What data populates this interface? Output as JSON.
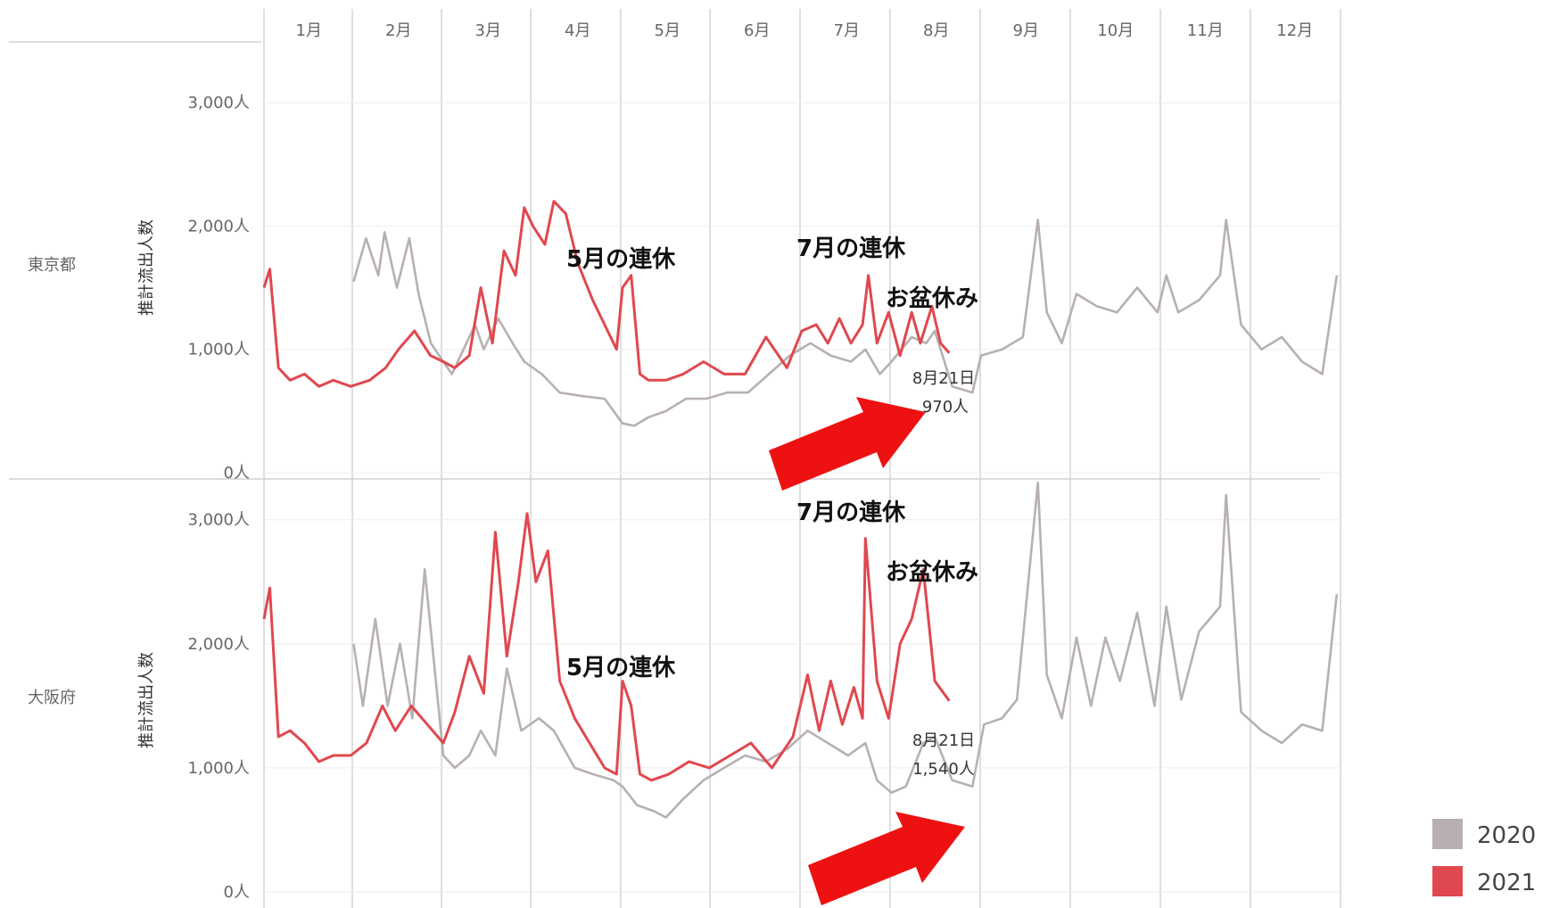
{
  "chart_data": {
    "type": "line",
    "title": "",
    "months": [
      "1月",
      "2月",
      "3月",
      "4月",
      "5月",
      "6月",
      "7月",
      "8月",
      "9月",
      "10月",
      "11月",
      "12月"
    ],
    "ylabel": "推計流出人数",
    "y_ticks": [
      "0人",
      "1,000人",
      "2,000人",
      "3,000人"
    ],
    "ylim": [
      0,
      3000
    ],
    "grid": true,
    "legend": {
      "position": "bottom-right",
      "items": [
        {
          "label": "2020",
          "color": "#b8b0b0"
        },
        {
          "label": "2021",
          "color": "#e0484f"
        }
      ]
    },
    "panels": [
      {
        "region": "東京都",
        "series": [
          {
            "name": "2020",
            "color": "#b8b0b0",
            "x": [
              "2020-02-01",
              "2020-02-05",
              "2020-02-09",
              "2020-02-11",
              "2020-02-15",
              "2020-02-19",
              "2020-02-22",
              "2020-02-26",
              "2020-03-01",
              "2020-03-04",
              "2020-03-08",
              "2020-03-12",
              "2020-03-15",
              "2020-03-20",
              "2020-03-25",
              "2020-03-29",
              "2020-04-04",
              "2020-04-10",
              "2020-04-18",
              "2020-04-25",
              "2020-05-01",
              "2020-05-05",
              "2020-05-10",
              "2020-05-16",
              "2020-05-23",
              "2020-05-30",
              "2020-06-06",
              "2020-06-13",
              "2020-06-20",
              "2020-06-27",
              "2020-07-04",
              "2020-07-11",
              "2020-07-18",
              "2020-07-23",
              "2020-07-28",
              "2020-08-01",
              "2020-08-08",
              "2020-08-13",
              "2020-08-16",
              "2020-08-22",
              "2020-08-29",
              "2020-09-01",
              "2020-09-08",
              "2020-09-15",
              "2020-09-20",
              "2020-09-23",
              "2020-09-28",
              "2020-10-03",
              "2020-10-10",
              "2020-10-17",
              "2020-10-24",
              "2020-10-31",
              "2020-11-03",
              "2020-11-07",
              "2020-11-14",
              "2020-11-21",
              "2020-11-23",
              "2020-11-28",
              "2020-12-05",
              "2020-12-12",
              "2020-12-19",
              "2020-12-26",
              "2020-12-31"
            ],
            "values": [
              1550,
              1900,
              1600,
              1950,
              1500,
              1900,
              1450,
              1050,
              900,
              800,
              1000,
              1200,
              1000,
              1250,
              1050,
              900,
              800,
              650,
              620,
              600,
              400,
              380,
              450,
              500,
              600,
              600,
              650,
              650,
              800,
              950,
              1050,
              950,
              900,
              1000,
              800,
              900,
              1100,
              1050,
              1150,
              700,
              650,
              950,
              1000,
              1100,
              2050,
              1300,
              1050,
              1450,
              1350,
              1300,
              1500,
              1300,
              1600,
              1300,
              1400,
              1600,
              2050,
              1200,
              1000,
              1100,
              900,
              800,
              1600
            ]
          },
          {
            "name": "2021",
            "color": "#e0484f",
            "x": [
              "2021-01-01",
              "2021-01-03",
              "2021-01-06",
              "2021-01-10",
              "2021-01-15",
              "2021-01-20",
              "2021-01-25",
              "2021-01-31",
              "2021-02-06",
              "2021-02-11",
              "2021-02-15",
              "2021-02-20",
              "2021-02-25",
              "2021-03-01",
              "2021-03-05",
              "2021-03-10",
              "2021-03-14",
              "2021-03-18",
              "2021-03-22",
              "2021-03-26",
              "2021-03-29",
              "2021-04-01",
              "2021-04-05",
              "2021-04-08",
              "2021-04-12",
              "2021-04-16",
              "2021-04-21",
              "2021-04-25",
              "2021-04-29",
              "2021-05-01",
              "2021-05-04",
              "2021-05-07",
              "2021-05-10",
              "2021-05-16",
              "2021-05-22",
              "2021-05-29",
              "2021-06-05",
              "2021-06-12",
              "2021-06-19",
              "2021-06-26",
              "2021-07-01",
              "2021-07-06",
              "2021-07-10",
              "2021-07-14",
              "2021-07-18",
              "2021-07-22",
              "2021-07-24",
              "2021-07-27",
              "2021-07-31",
              "2021-08-04",
              "2021-08-08",
              "2021-08-11",
              "2021-08-15",
              "2021-08-18",
              "2021-08-21"
            ],
            "values": [
              1500,
              1650,
              850,
              750,
              800,
              700,
              750,
              700,
              750,
              850,
              1000,
              1150,
              950,
              900,
              850,
              950,
              1500,
              1050,
              1800,
              1600,
              2150,
              2000,
              1850,
              2200,
              2100,
              1700,
              1400,
              1200,
              1000,
              1500,
              1600,
              800,
              750,
              750,
              800,
              900,
              800,
              800,
              1100,
              850,
              1150,
              1200,
              1050,
              1250,
              1050,
              1200,
              1600,
              1050,
              1300,
              950,
              1300,
              1050,
              1350,
              1050,
              970
            ]
          }
        ],
        "callout": {
          "date": "8月21日",
          "value": "970人"
        },
        "annotations": [
          "5月の連休",
          "7月の連休",
          "お盆休み"
        ]
      },
      {
        "region": "大阪府",
        "series": [
          {
            "name": "2020",
            "color": "#b8b0b0",
            "x": [
              "2020-02-01",
              "2020-02-04",
              "2020-02-08",
              "2020-02-12",
              "2020-02-16",
              "2020-02-20",
              "2020-02-24",
              "2020-02-28",
              "2020-03-01",
              "2020-03-05",
              "2020-03-10",
              "2020-03-14",
              "2020-03-19",
              "2020-03-23",
              "2020-03-28",
              "2020-04-03",
              "2020-04-08",
              "2020-04-15",
              "2020-04-21",
              "2020-04-28",
              "2020-05-01",
              "2020-05-06",
              "2020-05-12",
              "2020-05-16",
              "2020-05-22",
              "2020-05-29",
              "2020-06-05",
              "2020-06-12",
              "2020-06-19",
              "2020-06-26",
              "2020-07-03",
              "2020-07-10",
              "2020-07-17",
              "2020-07-23",
              "2020-07-27",
              "2020-08-01",
              "2020-08-06",
              "2020-08-12",
              "2020-08-16",
              "2020-08-22",
              "2020-08-29",
              "2020-09-02",
              "2020-09-08",
              "2020-09-13",
              "2020-09-20",
              "2020-09-23",
              "2020-09-28",
              "2020-10-03",
              "2020-10-08",
              "2020-10-13",
              "2020-10-18",
              "2020-10-24",
              "2020-10-30",
              "2020-11-03",
              "2020-11-08",
              "2020-11-14",
              "2020-11-21",
              "2020-11-23",
              "2020-11-28",
              "2020-12-05",
              "2020-12-12",
              "2020-12-19",
              "2020-12-26",
              "2020-12-31"
            ],
            "values": [
              2000,
              1500,
              2200,
              1500,
              2000,
              1400,
              2600,
              1600,
              1100,
              1000,
              1100,
              1300,
              1100,
              1800,
              1300,
              1400,
              1300,
              1000,
              950,
              900,
              850,
              700,
              650,
              600,
              750,
              900,
              1000,
              1100,
              1050,
              1150,
              1300,
              1200,
              1100,
              1200,
              900,
              800,
              850,
              1200,
              1250,
              900,
              850,
              1350,
              1400,
              1550,
              3300,
              1750,
              1400,
              2050,
              1500,
              2050,
              1700,
              2250,
              1500,
              2300,
              1550,
              2100,
              2300,
              3200,
              1450,
              1300,
              1200,
              1350,
              1300,
              2400
            ]
          },
          {
            "name": "2021",
            "color": "#e0484f",
            "x": [
              "2021-01-01",
              "2021-01-03",
              "2021-01-06",
              "2021-01-10",
              "2021-01-15",
              "2021-01-20",
              "2021-01-25",
              "2021-01-31",
              "2021-02-05",
              "2021-02-10",
              "2021-02-14",
              "2021-02-19",
              "2021-02-24",
              "2021-03-01",
              "2021-03-05",
              "2021-03-10",
              "2021-03-15",
              "2021-03-19",
              "2021-03-23",
              "2021-03-27",
              "2021-03-30",
              "2021-04-02",
              "2021-04-06",
              "2021-04-10",
              "2021-04-15",
              "2021-04-20",
              "2021-04-25",
              "2021-04-29",
              "2021-05-01",
              "2021-05-04",
              "2021-05-07",
              "2021-05-11",
              "2021-05-17",
              "2021-05-24",
              "2021-05-31",
              "2021-06-07",
              "2021-06-14",
              "2021-06-21",
              "2021-06-28",
              "2021-07-03",
              "2021-07-07",
              "2021-07-11",
              "2021-07-15",
              "2021-07-19",
              "2021-07-22",
              "2021-07-23",
              "2021-07-27",
              "2021-07-31",
              "2021-08-04",
              "2021-08-08",
              "2021-08-12",
              "2021-08-16",
              "2021-08-21"
            ],
            "values": [
              2200,
              2450,
              1250,
              1300,
              1200,
              1050,
              1100,
              1100,
              1200,
              1500,
              1300,
              1500,
              1350,
              1200,
              1450,
              1900,
              1600,
              2900,
              1900,
              2500,
              3050,
              2500,
              2750,
              1700,
              1400,
              1200,
              1000,
              950,
              1700,
              1500,
              950,
              900,
              950,
              1050,
              1000,
              1100,
              1200,
              1000,
              1250,
              1750,
              1300,
              1700,
              1350,
              1650,
              1400,
              2850,
              1700,
              1400,
              2000,
              2200,
              2600,
              1700,
              1540
            ]
          }
        ],
        "callout": {
          "date": "8月21日",
          "value": "1,540人"
        },
        "annotations": [
          "7月の連休",
          "お盆休み",
          "5月の連休"
        ]
      }
    ]
  }
}
